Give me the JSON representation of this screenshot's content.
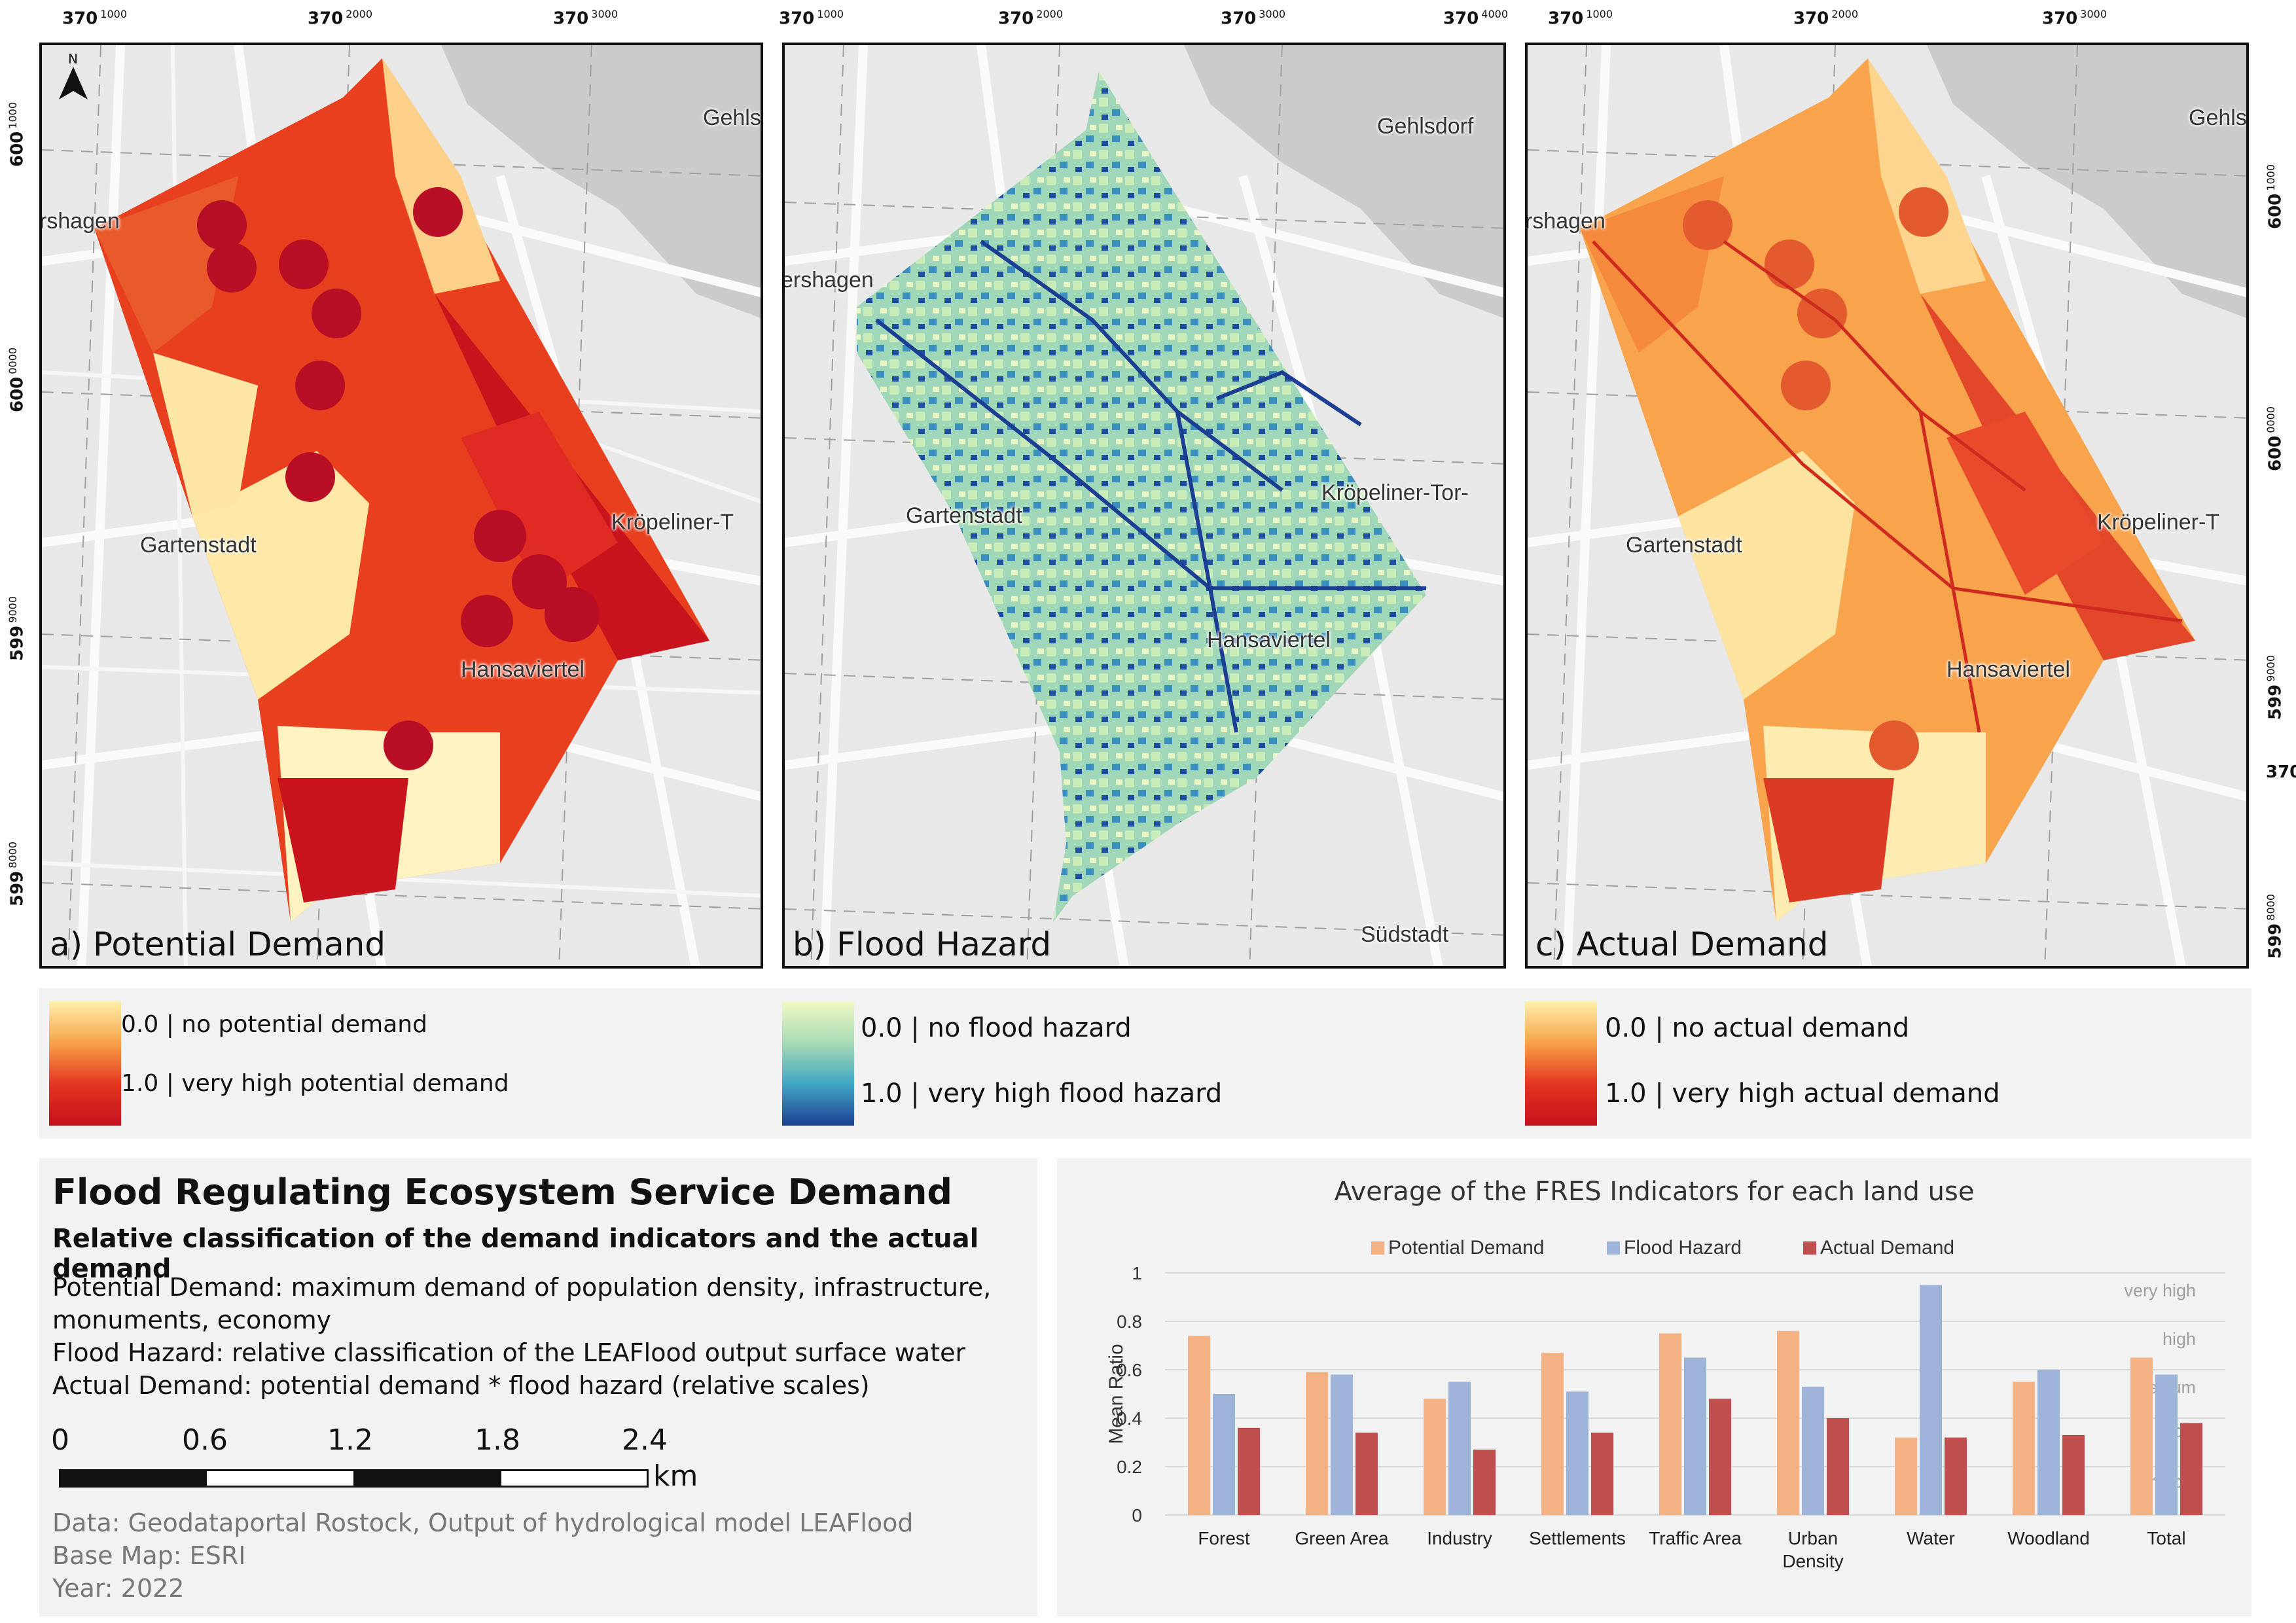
{
  "panels": [
    {
      "label": "a) Potential Demand",
      "places": [
        "rshagen",
        "Gartenstadt",
        "Hansaviertel",
        "Kröpeliner-T",
        "Gehls"
      ]
    },
    {
      "label": "b) Flood Hazard",
      "places": [
        "ershagen",
        "Gartenstadt",
        "Hansaviertel",
        "Kröpeliner-Tor-",
        "Gehlsdorf",
        "Südstadt"
      ]
    },
    {
      "label": "c) Actual Demand",
      "places": [
        "rshagen",
        "Gartenstadt",
        "Hansaviertel",
        "Kröpeliner-T",
        "Gehls"
      ]
    }
  ],
  "north_label": "N",
  "coords": {
    "top_main": "370",
    "top_sup": [
      "1000",
      "2000",
      "3000",
      "4000"
    ],
    "side_a": [
      {
        "main": "600",
        "sup": "1000"
      },
      {
        "main": "600",
        "sup": "0000"
      },
      {
        "main": "599",
        "sup": "9000"
      },
      {
        "main": "599",
        "sup": "8000"
      }
    ],
    "side_c": [
      {
        "main": "600",
        "sup": "1000"
      },
      {
        "main": "600",
        "sup": "0000"
      },
      {
        "main": "599",
        "sup": "9000"
      },
      {
        "main": "599",
        "sup": "8000"
      }
    ],
    "side_extra": "370"
  },
  "legend": {
    "potential": {
      "low": "0.0 | no potential demand",
      "high": "1.0 | very high potential demand"
    },
    "hazard": {
      "low": "0.0 | no flood hazard",
      "high": "1.0 | very high flood hazard"
    },
    "actual": {
      "low": "0.0 | no actual demand",
      "high": "1.0 | very high actual demand"
    }
  },
  "info": {
    "title": "Flood Regulating Ecosystem Service Demand",
    "subtitle": "Relative classification of the demand indicators and the actual demand",
    "lines": [
      "Potential Demand: maximum demand of population density, infrastructure,",
      "monuments, economy",
      "Flood Hazard: relative classification of the LEAFlood output surface water",
      "Actual Demand: potential demand * flood hazard (relative scales)"
    ],
    "scale_labels": [
      "0",
      "0.6",
      "1.2",
      "1.8",
      "2.4"
    ],
    "scale_unit": "km",
    "sources": [
      "Data: Geodataportal Rostock, Output of hydrological model LEAFlood",
      "Base Map: ESRI",
      "Year: 2022"
    ]
  },
  "chart_data": {
    "type": "bar",
    "title": "Average of the FRES Indicators for each land use",
    "ylabel": "Mean Ratio",
    "xlabel": "",
    "ylim": [
      0,
      1
    ],
    "yticks": [
      "0",
      "0.2",
      "0.4",
      "0.6",
      "0.8",
      "1"
    ],
    "categories": [
      "Forest",
      "Green Area",
      "Industry",
      "Settlements",
      "Traffic Area",
      "Urban Density",
      "Water",
      "Woodland",
      "Total"
    ],
    "series": [
      {
        "name": "Potential Demand",
        "color": "#f4b183",
        "values": [
          0.74,
          0.59,
          0.48,
          0.67,
          0.75,
          0.76,
          0.32,
          0.55,
          0.65
        ]
      },
      {
        "name": "Flood Hazard",
        "color": "#9db3d8",
        "values": [
          0.5,
          0.58,
          0.55,
          0.51,
          0.65,
          0.53,
          0.95,
          0.6,
          0.58
        ]
      },
      {
        "name": "Actual Demand",
        "color": "#c0504d",
        "values": [
          0.36,
          0.34,
          0.27,
          0.34,
          0.48,
          0.4,
          0.32,
          0.33,
          0.38
        ]
      }
    ],
    "legend_position": "top",
    "class_labels": [
      "very high",
      "high",
      "medium",
      "low",
      "very low"
    ]
  }
}
